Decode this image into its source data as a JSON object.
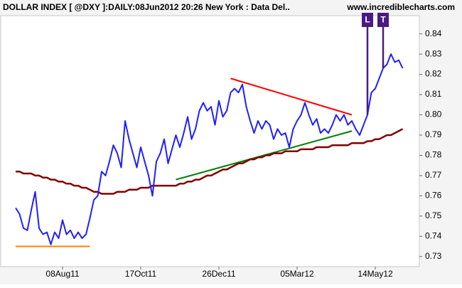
{
  "chart_data": {
    "type": "line",
    "title": "DOLLAR INDEX [ @DXY ]:DAILY:08Jun2012 20:26 New York : Data Del..",
    "source": "www.incrediblecharts.com",
    "categories": [
      null,
      null,
      null,
      null,
      null,
      null,
      null,
      null,
      null,
      null,
      null,
      null,
      "08Aug11",
      null,
      null,
      null,
      null,
      null,
      null,
      null,
      null,
      null,
      null,
      null,
      null,
      null,
      null,
      null,
      null,
      null,
      null,
      null,
      "17Oct11",
      null,
      null,
      null,
      null,
      null,
      null,
      null,
      null,
      null,
      null,
      null,
      null,
      null,
      null,
      null,
      null,
      null,
      null,
      null,
      "26Dec11",
      null,
      null,
      null,
      null,
      null,
      null,
      null,
      null,
      null,
      null,
      null,
      null,
      null,
      null,
      null,
      null,
      null,
      null,
      null,
      "05Mar12",
      null,
      null,
      null,
      null,
      null,
      null,
      null,
      null,
      null,
      null,
      null,
      null,
      null,
      null,
      null,
      null,
      null,
      null,
      null,
      "14May12",
      null,
      null,
      null,
      null,
      null,
      null,
      null
    ],
    "series": [
      {
        "color": "#1f1fff",
        "values": [
          0.754,
          0.751,
          0.744,
          0.743,
          0.753,
          0.762,
          0.744,
          0.741,
          0.742,
          0.736,
          0.742,
          0.739,
          0.748,
          0.741,
          0.743,
          0.739,
          0.742,
          0.739,
          0.741,
          0.749,
          0.758,
          0.76,
          0.772,
          0.77,
          0.777,
          0.785,
          0.781,
          0.774,
          0.797,
          0.788,
          0.781,
          0.774,
          0.784,
          0.777,
          0.77,
          0.76,
          0.777,
          0.781,
          0.788,
          0.776,
          0.783,
          0.79,
          0.784,
          0.791,
          0.799,
          0.788,
          0.793,
          0.802,
          0.806,
          0.802,
          0.804,
          0.795,
          0.807,
          0.799,
          0.802,
          0.811,
          0.813,
          0.811,
          0.815,
          0.804,
          0.797,
          0.791,
          0.797,
          0.793,
          0.797,
          0.795,
          0.788,
          0.793,
          0.79,
          0.791,
          0.784,
          0.793,
          0.797,
          0.8,
          0.806,
          0.8,
          0.795,
          0.798,
          0.791,
          0.793,
          0.791,
          0.795,
          0.8,
          0.797,
          0.8,
          0.795,
          0.797,
          0.793,
          0.79,
          0.795,
          0.8,
          0.811,
          0.813,
          0.818,
          0.823,
          0.825,
          0.83,
          0.826,
          0.827,
          0.823
        ]
      },
      {
        "color": "#800000",
        "values": [
          0.772,
          0.772,
          0.771,
          0.771,
          0.771,
          0.77,
          0.77,
          0.769,
          0.769,
          0.768,
          0.768,
          0.767,
          0.767,
          0.766,
          0.766,
          0.765,
          0.765,
          0.764,
          0.764,
          0.763,
          0.762,
          0.762,
          0.761,
          0.761,
          0.761,
          0.761,
          0.762,
          0.762,
          0.762,
          0.763,
          0.763,
          0.763,
          0.764,
          0.764,
          0.764,
          0.765,
          0.765,
          0.765,
          0.765,
          0.765,
          0.765,
          0.765,
          0.766,
          0.766,
          0.767,
          0.767,
          0.768,
          0.768,
          0.769,
          0.77,
          0.77,
          0.771,
          0.772,
          0.773,
          0.773,
          0.774,
          0.775,
          0.776,
          0.776,
          0.777,
          0.778,
          0.778,
          0.779,
          0.779,
          0.78,
          0.78,
          0.781,
          0.781,
          0.781,
          0.782,
          0.782,
          0.782,
          0.782,
          0.783,
          0.783,
          0.783,
          0.783,
          0.784,
          0.784,
          0.784,
          0.784,
          0.785,
          0.785,
          0.785,
          0.785,
          0.785,
          0.786,
          0.786,
          0.786,
          0.786,
          0.787,
          0.787,
          0.788,
          0.788,
          0.789,
          0.79,
          0.79,
          0.791,
          0.792,
          0.793
        ]
      }
    ],
    "trendlines": [
      {
        "color": "#ff8000",
        "x": [
          0,
          19
        ],
        "values": [
          0.735,
          0.735
        ]
      },
      {
        "color": "#ff0000",
        "x": [
          55,
          86
        ],
        "values": [
          0.818,
          0.8
        ]
      },
      {
        "color": "#008000",
        "x": [
          41,
          86
        ],
        "values": [
          0.768,
          0.792
        ]
      }
    ],
    "annotations": [
      {
        "label": "L",
        "x": 90,
        "color": "#4b1a80"
      },
      {
        "label": "T",
        "x": 94,
        "color": "#4b1a80"
      }
    ],
    "ylim": [
      0.725,
      0.849
    ],
    "yticks": [
      0.73,
      0.74,
      0.75,
      0.76,
      0.77,
      0.78,
      0.79,
      {
        "value": 0.8,
        "label": "0.80"
      },
      0.81,
      0.82,
      0.83,
      0.84
    ]
  }
}
